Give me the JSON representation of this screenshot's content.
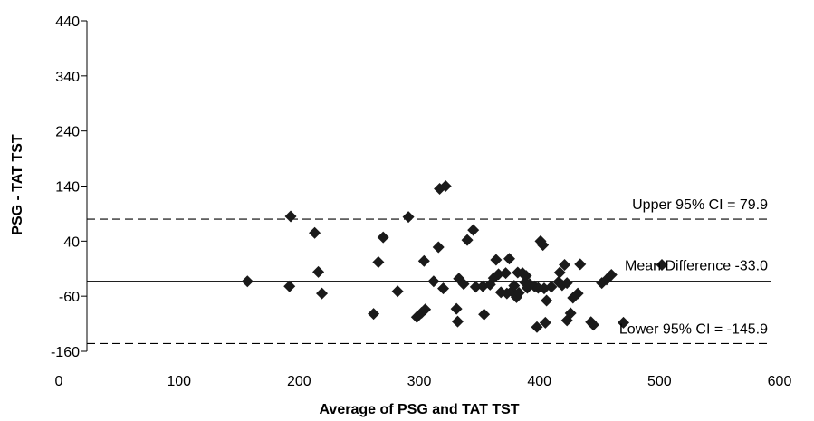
{
  "chart_data": {
    "type": "scatter",
    "title": "",
    "xlabel": "Average of PSG and TAT TST",
    "ylabel": "PSG - TAT TST",
    "xlim": [
      0,
      600
    ],
    "ylim": [
      -160,
      440
    ],
    "xticks": [
      0,
      100,
      200,
      300,
      400,
      500,
      600
    ],
    "yticks": [
      -160,
      -60,
      40,
      140,
      240,
      340,
      440
    ],
    "grid": false,
    "legend": "none",
    "marker": "diamond",
    "marker_color": "#1a1a1a",
    "points": [
      [
        157,
        -33
      ],
      [
        192,
        -42
      ],
      [
        193,
        85
      ],
      [
        213,
        55
      ],
      [
        216,
        -16
      ],
      [
        219,
        -55
      ],
      [
        262,
        -92
      ],
      [
        266,
        2
      ],
      [
        270,
        47
      ],
      [
        282,
        -51
      ],
      [
        291,
        84
      ],
      [
        298,
        -98
      ],
      [
        302,
        -90
      ],
      [
        304,
        4
      ],
      [
        305,
        -84
      ],
      [
        312,
        -33
      ],
      [
        316,
        29
      ],
      [
        317,
        135
      ],
      [
        320,
        -46
      ],
      [
        322,
        140
      ],
      [
        331,
        -83
      ],
      [
        332,
        -106
      ],
      [
        333,
        -28
      ],
      [
        337,
        -38
      ],
      [
        340,
        42
      ],
      [
        345,
        60
      ],
      [
        347,
        -43
      ],
      [
        353,
        -42
      ],
      [
        354,
        -93
      ],
      [
        359,
        -39
      ],
      [
        362,
        -27
      ],
      [
        364,
        6
      ],
      [
        366,
        -20
      ],
      [
        368,
        -53
      ],
      [
        372,
        -18
      ],
      [
        373,
        -55
      ],
      [
        375,
        8
      ],
      [
        377,
        -51
      ],
      [
        379,
        -41
      ],
      [
        381,
        -62
      ],
      [
        382,
        -17
      ],
      [
        383,
        -54
      ],
      [
        386,
        -18
      ],
      [
        388,
        -35
      ],
      [
        389,
        -23
      ],
      [
        390,
        -45
      ],
      [
        392,
        -38
      ],
      [
        396,
        -42
      ],
      [
        398,
        -116
      ],
      [
        399,
        -45
      ],
      [
        401,
        40
      ],
      [
        403,
        33
      ],
      [
        404,
        -46
      ],
      [
        405,
        -108
      ],
      [
        406,
        -68
      ],
      [
        410,
        -43
      ],
      [
        416,
        -34
      ],
      [
        417,
        -17
      ],
      [
        419,
        -40
      ],
      [
        421,
        -3
      ],
      [
        423,
        -36
      ],
      [
        423,
        -104
      ],
      [
        426,
        -91
      ],
      [
        428,
        -63
      ],
      [
        432,
        -55
      ],
      [
        434,
        -2
      ],
      [
        443,
        -107
      ],
      [
        445,
        -112
      ],
      [
        452,
        -36
      ],
      [
        456,
        -30
      ],
      [
        460,
        -21
      ],
      [
        470,
        -108
      ],
      [
        502,
        -3
      ]
    ],
    "reference_lines": [
      {
        "name": "Upper 95% CI = 79.9",
        "y": 79.9,
        "style": "dashed"
      },
      {
        "name": "Mean Difference -33.0",
        "y": -33.0,
        "style": "solid"
      },
      {
        "name": "Lower 95% CI = -145.9",
        "y": -145.9,
        "style": "dashed"
      }
    ]
  }
}
